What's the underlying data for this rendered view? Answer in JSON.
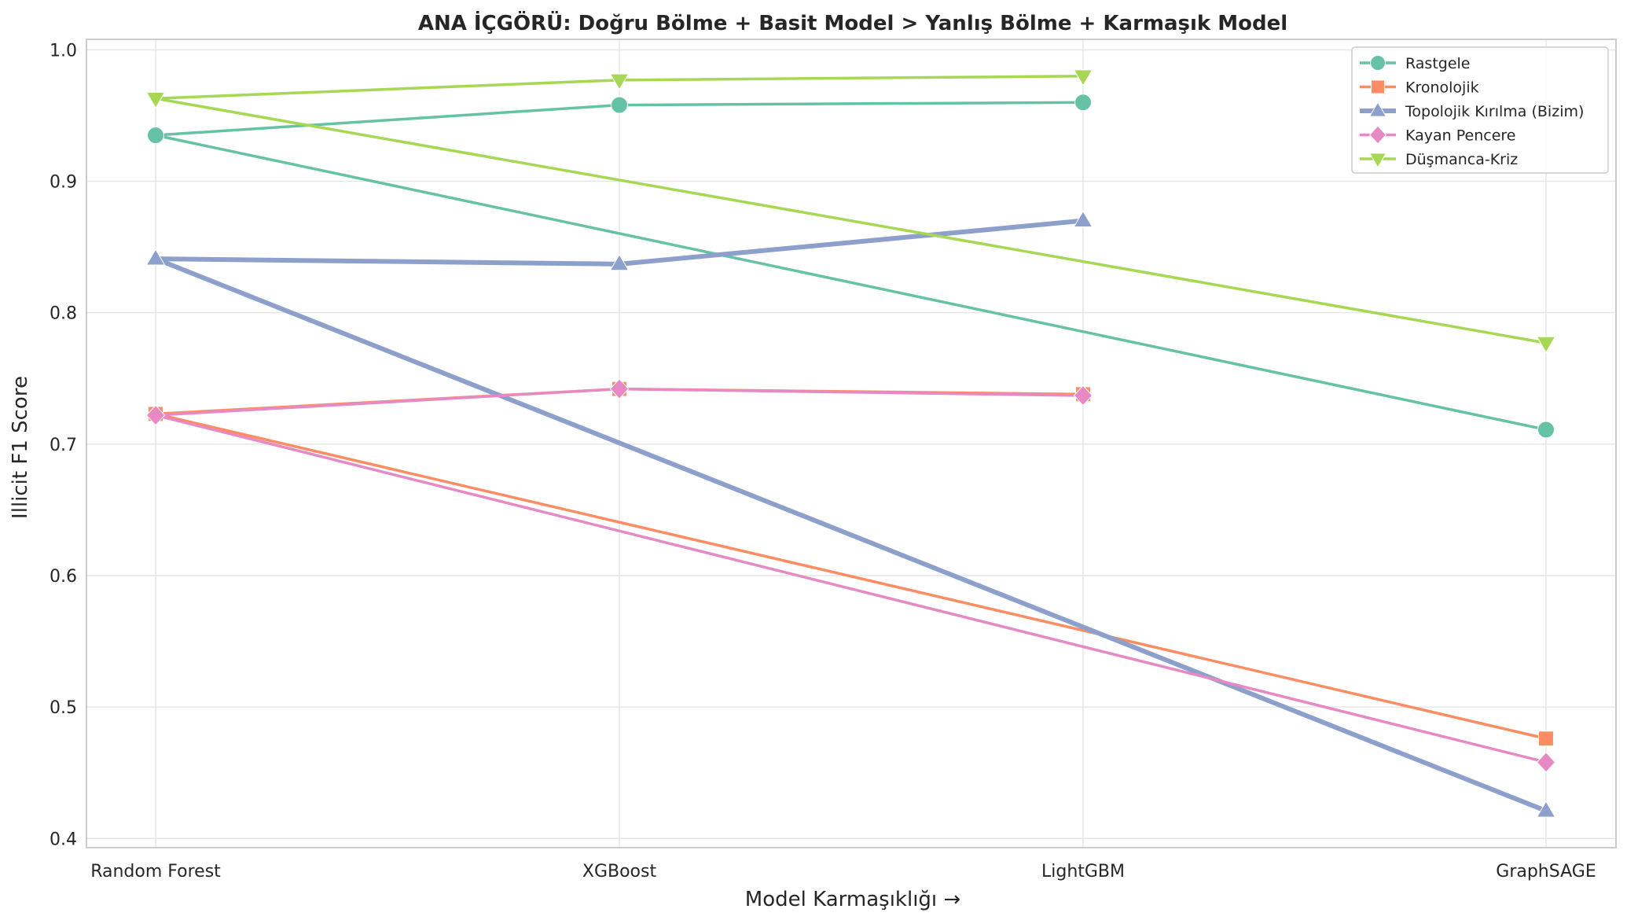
{
  "chart_data": {
    "type": "line",
    "title": "ANA İÇGÖRÜ: Doğru Bölme + Basit Model > Yanlış Bölme + Karmaşık Model",
    "xlabel": "Model Karmaşıklığı →",
    "ylabel": "Illicit F1 Score",
    "categories": [
      "Random Forest",
      "XGBoost",
      "LightGBM",
      "GraphSAGE"
    ],
    "ylim": [
      0.393,
      1.008
    ],
    "yticks": [
      "0.4",
      "0.5",
      "0.6",
      "0.7",
      "0.8",
      "0.9",
      "1.0"
    ],
    "grid": true,
    "legend_position": "top-right",
    "series": [
      {
        "name": "Rastgele",
        "color": "#66c2a5",
        "marker": "circle",
        "values": [
          0.935,
          0.958,
          0.96,
          0.711
        ]
      },
      {
        "name": "Kronolojik",
        "color": "#fc8d62",
        "marker": "square",
        "values": [
          0.723,
          0.742,
          0.738,
          0.476
        ]
      },
      {
        "name": "Topolojik Kırılma (Bizim)",
        "color": "#8da0cb",
        "marker": "triangle-up",
        "values": [
          0.841,
          0.837,
          0.87,
          0.421
        ]
      },
      {
        "name": "Kayan Pencere",
        "color": "#e78ac3",
        "marker": "diamond",
        "values": [
          0.722,
          0.742,
          0.737,
          0.458
        ]
      },
      {
        "name": "Düşmanca-Kriz",
        "color": "#a6d854",
        "marker": "triangle-down",
        "values": [
          0.963,
          0.977,
          0.98,
          0.777
        ]
      }
    ]
  }
}
